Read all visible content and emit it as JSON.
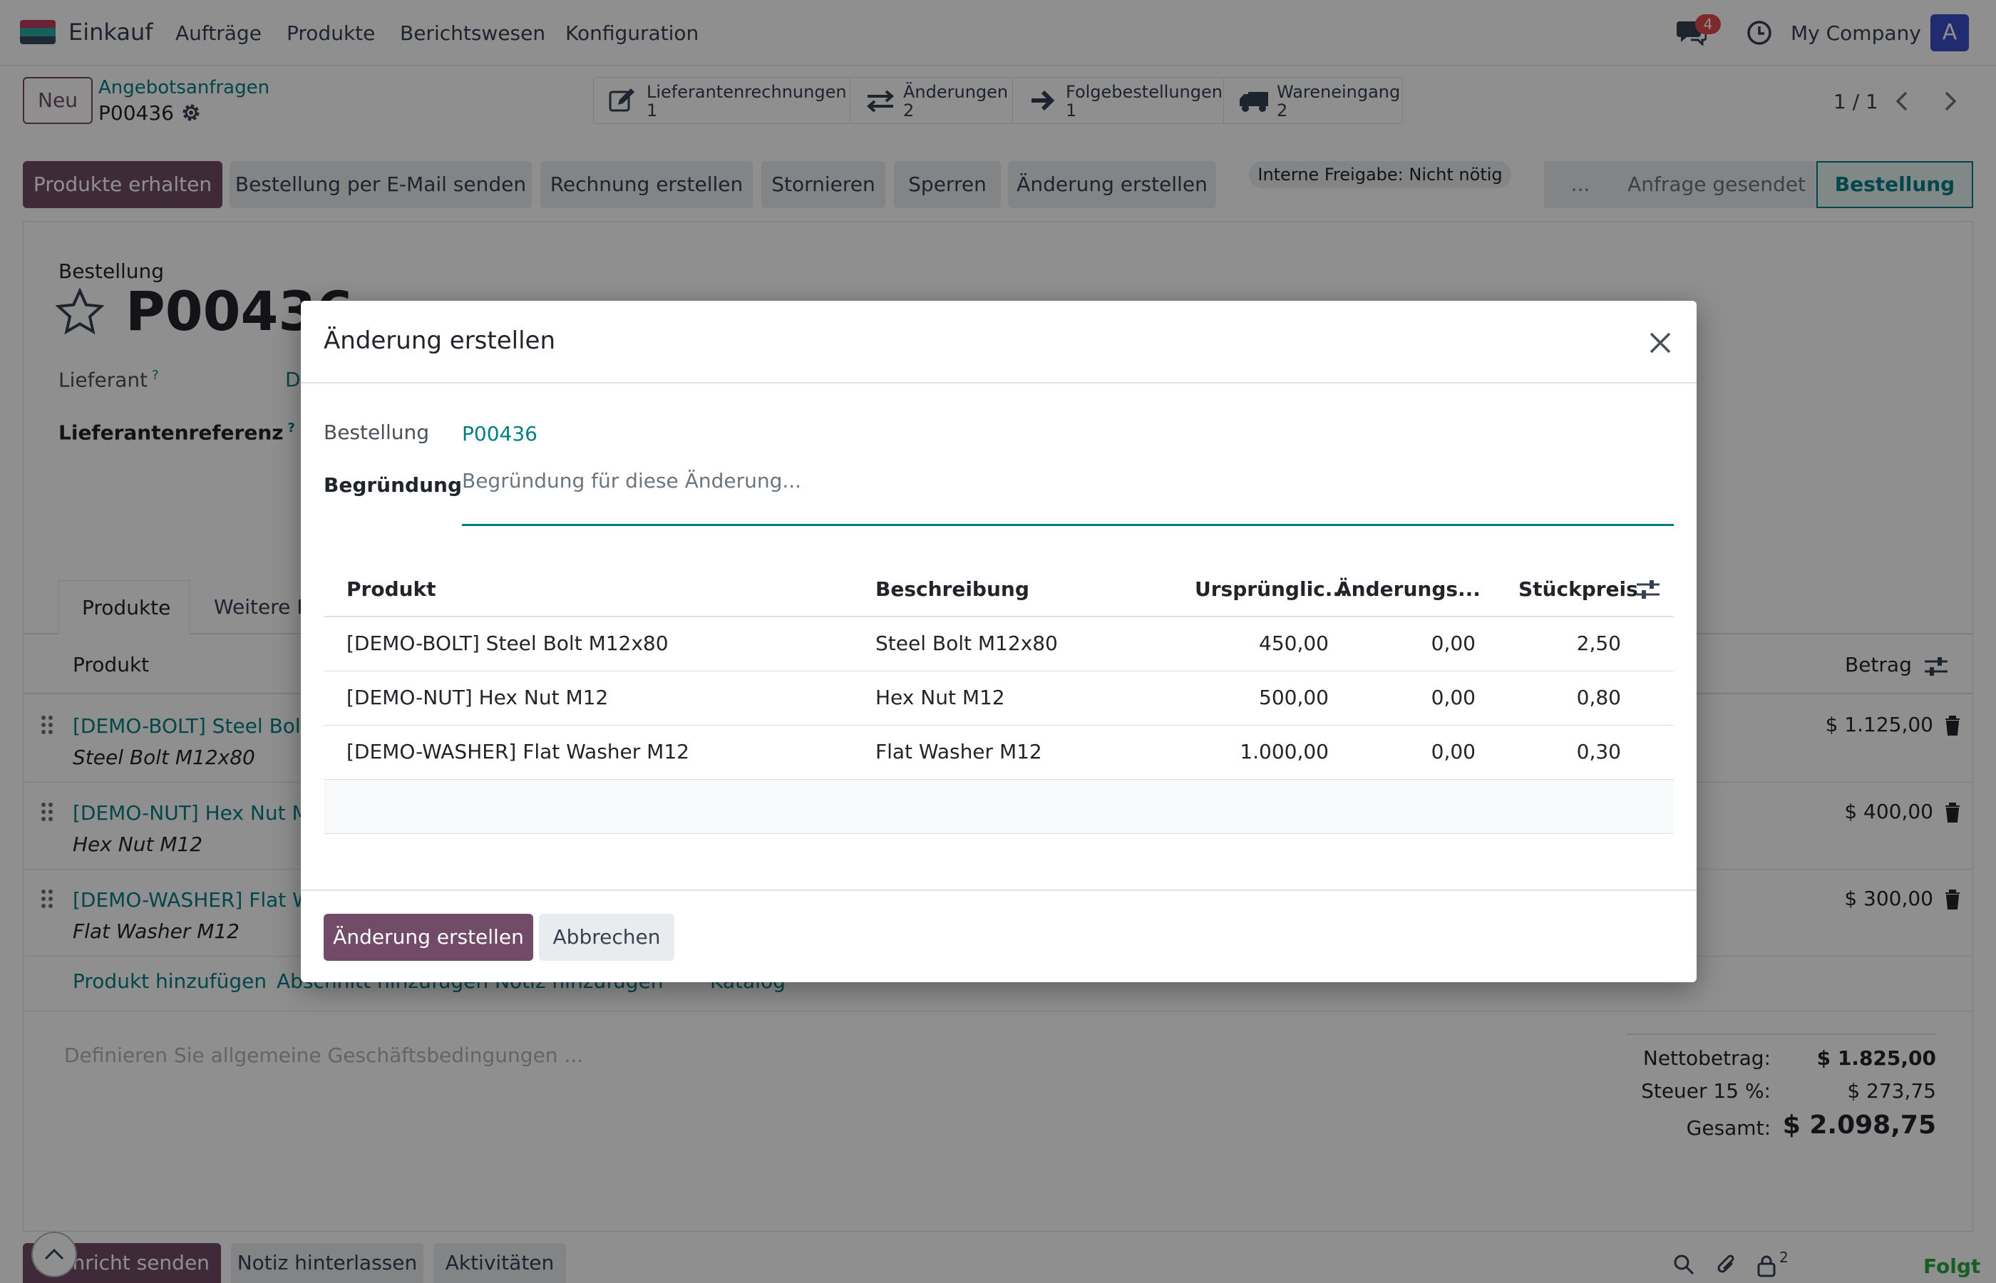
{
  "navbar": {
    "app_name": "Einkauf",
    "menu": [
      "Aufträge",
      "Produkte",
      "Berichtswesen",
      "Konfiguration"
    ],
    "chat_count": "4",
    "company": "My Company",
    "avatar_letter": "A"
  },
  "control": {
    "new_label": "Neu",
    "breadcrumb_parent": "Angebotsanfragen",
    "breadcrumb_current": "P00436",
    "smart_buttons": [
      {
        "label": "Lieferantenrechnungen",
        "count": "1",
        "icon": "pencil-square-icon"
      },
      {
        "label": "Änderungen",
        "count": "2",
        "icon": "exchange-arrows-icon"
      },
      {
        "label": "Folgebestellungen",
        "count": "1",
        "icon": "arrow-right-icon"
      },
      {
        "label": "Wareneingang",
        "count": "2",
        "icon": "truck-icon"
      }
    ],
    "pager": "1 / 1"
  },
  "statusbar": {
    "buttons": [
      "Produkte erhalten",
      "Bestellung per E-Mail senden",
      "Rechnung erstellen",
      "Stornieren",
      "Sperren",
      "Änderung erstellen"
    ],
    "approval_badge": "Interne Freigabe: Nicht nötig",
    "stages": [
      "...",
      "Anfrage gesendet",
      "Bestellung"
    ]
  },
  "form": {
    "type_label": "Bestellung",
    "title": "P00436",
    "vendor_label": "Lieferant",
    "vendor_value_fragment": "D",
    "vendor_ref_label": "Lieferantenreferenz",
    "help_mark": "?",
    "tabs": [
      "Produkte",
      "Weitere In"
    ],
    "lines_header_product": "Produkt",
    "lines_header_amount": "Betrag",
    "lines": [
      {
        "name": "[DEMO-BOLT] Steel Bolt",
        "description": "Steel Bolt M12x80",
        "amount": "$ 1.125,00"
      },
      {
        "name": "[DEMO-NUT] Hex Nut M",
        "description": "Hex Nut M12",
        "amount": "$ 400,00"
      },
      {
        "name": "[DEMO-WASHER] Flat W",
        "description": "Flat Washer M12",
        "amount": "$ 300,00"
      }
    ],
    "add_links": [
      "Produkt hinzufügen",
      "Abschnitt hinzufügen",
      "Notiz hinzufügen",
      "Katalog"
    ],
    "terms_placeholder": "Definieren Sie allgemeine Geschäftsbedingungen ...",
    "totals": {
      "net_label": "Nettobetrag:",
      "net_value": "$ 1.825,00",
      "tax_label": "Steuer 15 %:",
      "tax_value": "$ 273,75",
      "total_label": "Gesamt:",
      "total_value": "$ 2.098,75"
    }
  },
  "chatter": {
    "send_message": "Nachricht senden",
    "log_note": "Notiz hinterlassen",
    "activities": "Aktivitäten",
    "followers_count": "2",
    "follow_label": "Folgt"
  },
  "modal": {
    "title": "Änderung erstellen",
    "order_label": "Bestellung",
    "order_value": "P00436",
    "reason_label": "Begründung",
    "reason_placeholder": "Begründung für diese Änderung...",
    "columns": [
      "Produkt",
      "Beschreibung",
      "Ursprünglic...",
      "Änderungs...",
      "Stückpreis"
    ],
    "rows": [
      {
        "product": "[DEMO-BOLT] Steel Bolt M12x80",
        "description": "Steel Bolt M12x80",
        "original": "450,00",
        "change": "0,00",
        "unit_price": "2,50"
      },
      {
        "product": "[DEMO-NUT] Hex Nut M12",
        "description": "Hex Nut M12",
        "original": "500,00",
        "change": "0,00",
        "unit_price": "0,80"
      },
      {
        "product": "[DEMO-WASHER] Flat Washer M12",
        "description": "Flat Washer M12",
        "original": "1.000,00",
        "change": "0,00",
        "unit_price": "0,30"
      }
    ],
    "confirm_label": "Änderung erstellen",
    "cancel_label": "Abbrechen"
  },
  "colors": {
    "primary": "#714b67",
    "link": "#017e84",
    "badge": "#e04b4b",
    "follow": "#28a745"
  }
}
